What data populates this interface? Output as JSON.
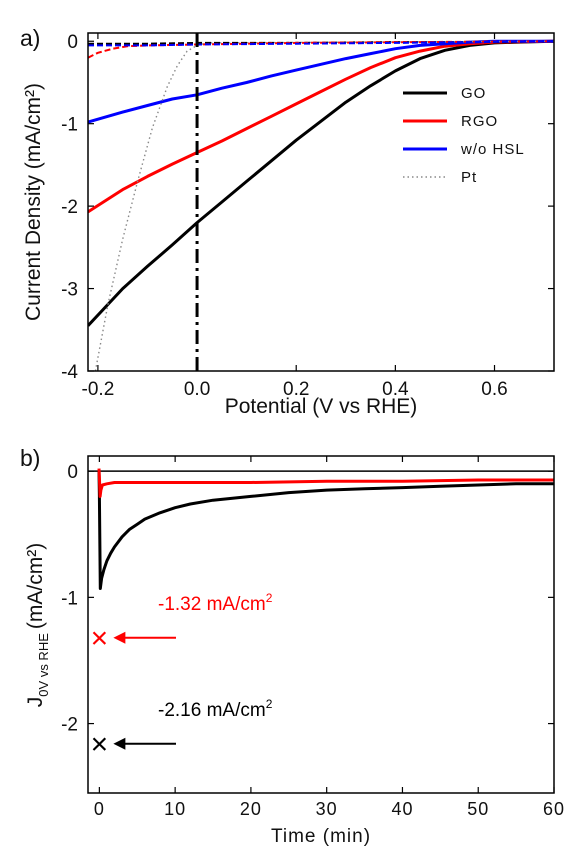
{
  "colors": {
    "GO": "#000000",
    "RGO": "#ff0000",
    "wo_HSL": "#0000ff",
    "Pt": "#888888"
  },
  "chart_data": [
    {
      "panel_label": "a)",
      "type": "line",
      "xlabel": "Potential (V vs RHE)",
      "ylabel": "Current Density (mA/cm²)",
      "xlim": [
        -0.22,
        0.72
      ],
      "ylim": [
        -4,
        0.1
      ],
      "xticks": [
        -0.2,
        0.0,
        0.2,
        0.4,
        0.6
      ],
      "xtick_labels": [
        "-0.2",
        "0.0",
        "0.2",
        "0.4",
        "0.6"
      ],
      "yticks": [
        0,
        -1,
        -2,
        -3,
        -4
      ],
      "ytick_labels": [
        "0",
        "-1",
        "-2",
        "-3",
        "-4"
      ],
      "legend": {
        "position": "right",
        "entries": [
          "GO",
          "RGO",
          "w/o HSL",
          "Pt"
        ]
      },
      "vertical_line": {
        "x": 0.0,
        "style": "dash-dot"
      },
      "series": [
        {
          "name": "GO",
          "style": "solid",
          "x": [
            -0.22,
            -0.15,
            -0.1,
            -0.05,
            0.0,
            0.05,
            0.1,
            0.15,
            0.2,
            0.25,
            0.3,
            0.35,
            0.4,
            0.45,
            0.5,
            0.55,
            0.6,
            0.65,
            0.72
          ],
          "y": [
            -3.45,
            -3.0,
            -2.73,
            -2.47,
            -2.2,
            -1.95,
            -1.7,
            -1.45,
            -1.2,
            -0.97,
            -0.74,
            -0.54,
            -0.36,
            -0.21,
            -0.11,
            -0.05,
            -0.02,
            -0.01,
            0.0
          ]
        },
        {
          "name": "RGO",
          "style": "solid",
          "x": [
            -0.22,
            -0.15,
            -0.1,
            -0.05,
            0.0,
            0.05,
            0.1,
            0.15,
            0.2,
            0.25,
            0.3,
            0.35,
            0.4,
            0.45,
            0.5,
            0.55,
            0.6,
            0.72
          ],
          "y": [
            -2.07,
            -1.8,
            -1.64,
            -1.49,
            -1.35,
            -1.21,
            -1.06,
            -0.91,
            -0.76,
            -0.61,
            -0.46,
            -0.32,
            -0.2,
            -0.12,
            -0.06,
            -0.03,
            -0.01,
            0.0
          ]
        },
        {
          "name": "w/o HSL",
          "style": "solid",
          "x": [
            -0.22,
            -0.15,
            -0.1,
            -0.05,
            0.0,
            0.05,
            0.1,
            0.15,
            0.2,
            0.25,
            0.3,
            0.35,
            0.4,
            0.45,
            0.5,
            0.55,
            0.6,
            0.72
          ],
          "y": [
            -0.98,
            -0.86,
            -0.78,
            -0.7,
            -0.65,
            -0.57,
            -0.5,
            -0.42,
            -0.35,
            -0.28,
            -0.21,
            -0.15,
            -0.09,
            -0.05,
            -0.03,
            -0.01,
            0.0,
            0.0
          ]
        },
        {
          "name": "Pt",
          "style": "dotted",
          "x": [
            -0.205,
            -0.18,
            -0.15,
            -0.12,
            -0.09,
            -0.06,
            -0.04,
            -0.02,
            0.0,
            0.02,
            0.72
          ],
          "y": [
            -4.0,
            -3.2,
            -2.4,
            -1.7,
            -1.05,
            -0.55,
            -0.3,
            -0.12,
            -0.05,
            -0.02,
            0.0
          ]
        },
        {
          "name": "GO dark",
          "style": "dashed",
          "x": [
            -0.22,
            -0.1,
            0.0,
            0.2,
            0.4,
            0.6,
            0.72
          ],
          "y": [
            -0.03,
            -0.03,
            -0.02,
            -0.02,
            -0.01,
            -0.01,
            0.0
          ]
        },
        {
          "name": "RGO dark",
          "style": "dashed",
          "x": [
            -0.22,
            -0.2,
            -0.17,
            -0.14,
            -0.1,
            0.0,
            0.2,
            0.72
          ],
          "y": [
            -0.2,
            -0.14,
            -0.09,
            -0.06,
            -0.05,
            -0.04,
            -0.02,
            0.0
          ]
        },
        {
          "name": "w/o HSL dark",
          "style": "dashed",
          "x": [
            -0.22,
            -0.1,
            0.0,
            0.2,
            0.4,
            0.72
          ],
          "y": [
            -0.05,
            -0.05,
            -0.04,
            -0.03,
            -0.02,
            0.0
          ]
        }
      ]
    },
    {
      "panel_label": "b)",
      "type": "line",
      "xlabel": "Time (min)",
      "ylabel_main": "J",
      "ylabel_sub": "0V vs RHE",
      "ylabel_unit": "(mA/cm²)",
      "xlim": [
        -1.5,
        60
      ],
      "ylim": [
        -2.55,
        0.12
      ],
      "xticks": [
        0,
        10,
        20,
        30,
        40,
        50,
        60
      ],
      "xtick_labels": [
        "0",
        "10",
        "20",
        "30",
        "40",
        "50",
        "60"
      ],
      "yticks": [
        0,
        -1,
        -2
      ],
      "ytick_labels": [
        "0",
        "-1",
        "-2"
      ],
      "reference_line_y": 0,
      "series": [
        {
          "name": "GO",
          "x": [
            -0.05,
            0.0,
            0.12,
            0.3,
            0.6,
            1.0,
            1.5,
            2,
            3,
            4,
            5,
            6,
            8,
            10,
            12,
            15,
            20,
            25,
            30,
            35,
            40,
            45,
            50,
            55,
            60
          ],
          "y": [
            0.0,
            -0.2,
            -0.93,
            -0.85,
            -0.78,
            -0.71,
            -0.65,
            -0.6,
            -0.52,
            -0.46,
            -0.42,
            -0.38,
            -0.33,
            -0.29,
            -0.26,
            -0.23,
            -0.2,
            -0.17,
            -0.15,
            -0.14,
            -0.13,
            -0.12,
            -0.11,
            -0.1,
            -0.1
          ]
        },
        {
          "name": "RGO",
          "x": [
            -0.05,
            0.0,
            0.1,
            0.2,
            0.4,
            1.0,
            2,
            5,
            10,
            20,
            30,
            40,
            50,
            60
          ],
          "y": [
            0.02,
            -0.05,
            -0.2,
            -0.15,
            -0.11,
            -0.1,
            -0.09,
            -0.09,
            -0.09,
            -0.09,
            -0.08,
            -0.08,
            -0.07,
            -0.07
          ]
        }
      ],
      "annotations": [
        {
          "text": "-1.32 mA/cm",
          "sup": "2",
          "series": "RGO",
          "marker": "×",
          "marker_x": 0,
          "marker_y": -1.32
        },
        {
          "text": "-2.16 mA/cm",
          "sup": "2",
          "series": "GO",
          "marker": "×",
          "marker_x": 0,
          "marker_y": -2.16
        }
      ]
    }
  ]
}
